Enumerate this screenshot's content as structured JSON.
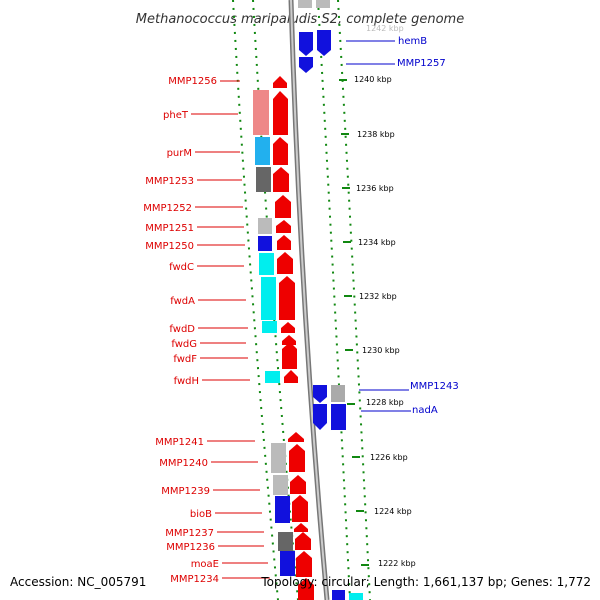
{
  "title": "Methanococcus maripaludis S2, complete genome",
  "partial_top_tick": "1242 kbp",
  "footer": {
    "accession": "Accession: NC_005791",
    "topology": "Topology: circular; Length: 1,661,137 bp; Genes: 1,772"
  },
  "colors": {
    "forward_strand_gene": "#ee0000",
    "reverse_strand_gene": "#0000dd",
    "forward_label": "#dd0000",
    "reverse_label": "#0000cc",
    "backbone": "#888888",
    "tick": "#118811",
    "cog_pink": "#ee8888",
    "cog_lightblue": "#22b0ee",
    "cog_darkgray": "#666666",
    "cog_lightgray": "#bbbbbb",
    "cog_blue": "#1111dd",
    "cog_cyan": "#00eeee"
  },
  "axis_ticks": [
    "1240 kbp",
    "1238 kbp",
    "1236 kbp",
    "1234 kbp",
    "1232 kbp",
    "1230 kbp",
    "1228 kbp",
    "1226 kbp",
    "1224 kbp",
    "1222 kbp"
  ],
  "left_labels": [
    "MMP1256",
    "pheT",
    "purM",
    "MMP1253",
    "MMP1252",
    "MMP1251",
    "MMP1250",
    "fwdC",
    "fwdA",
    "fwdD",
    "fwdG",
    "fwdF",
    "fwdH",
    "MMP1241",
    "MMP1240",
    "MMP1239",
    "bioB",
    "MMP1237",
    "MMP1236",
    "moaE",
    "MMP1234"
  ],
  "right_labels": [
    "hemB",
    "MMP1257",
    "MMP1243",
    "nadA"
  ],
  "gene_colors": {
    "red_arrow": "forward strand",
    "blue_arrow": "reverse strand"
  }
}
